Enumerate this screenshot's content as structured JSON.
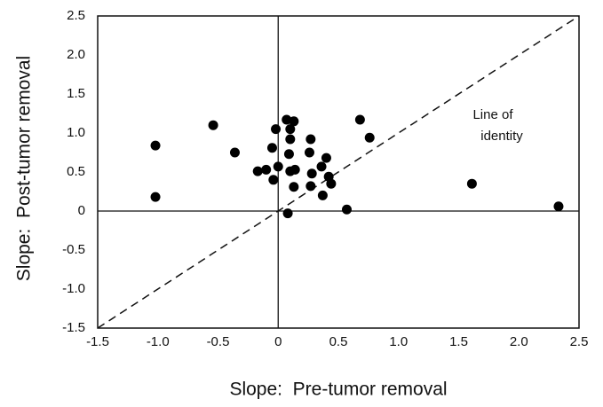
{
  "chart_data": {
    "type": "scatter",
    "xlabel": "Slope:  Pre-tumor removal",
    "ylabel": "Slope:  Post-tumor removal",
    "annotation_lines": [
      "Line of",
      "identity"
    ],
    "color": "#000000",
    "zero_lines": true,
    "identity_line": true,
    "grid": false,
    "x": [
      -1.02,
      -1.02,
      -0.54,
      -0.36,
      -0.17,
      -0.1,
      -0.05,
      -0.02,
      -0.04,
      0,
      0.07,
      0.13,
      0.1,
      0.1,
      0.09,
      0.1,
      0.14,
      0.13,
      0.08,
      0.27,
      0.26,
      0.28,
      0.27,
      0.36,
      0.4,
      0.42,
      0.44,
      0.37,
      0.57,
      0.68,
      0.76,
      1.61,
      2.33
    ],
    "y": [
      0.84,
      0.18,
      1.1,
      0.75,
      0.51,
      0.53,
      0.81,
      1.05,
      0.4,
      0.57,
      1.17,
      1.15,
      1.05,
      0.92,
      0.73,
      0.51,
      0.53,
      0.31,
      -0.03,
      0.92,
      0.75,
      0.48,
      0.32,
      0.57,
      0.68,
      0.44,
      0.35,
      0.2,
      0.02,
      1.17,
      0.94,
      0.35,
      0.06
    ],
    "xlim": [
      -1.5,
      2.5
    ],
    "ylim": [
      -1.5,
      2.5
    ],
    "xticks": [
      -1.5,
      {
        "value": -1,
        "label": "-1.0"
      },
      -0.5,
      0,
      0.5,
      {
        "value": 1,
        "label": "1.0"
      },
      1.5,
      {
        "value": 2,
        "label": "2.0"
      },
      2.5
    ],
    "yticks": [
      2.5,
      {
        "value": 2,
        "label": "2.0"
      },
      1.5,
      {
        "value": 1,
        "label": "1.0"
      },
      0.5,
      0,
      -0.5,
      {
        "value": -1,
        "label": "-1.0"
      },
      -1.5
    ]
  }
}
